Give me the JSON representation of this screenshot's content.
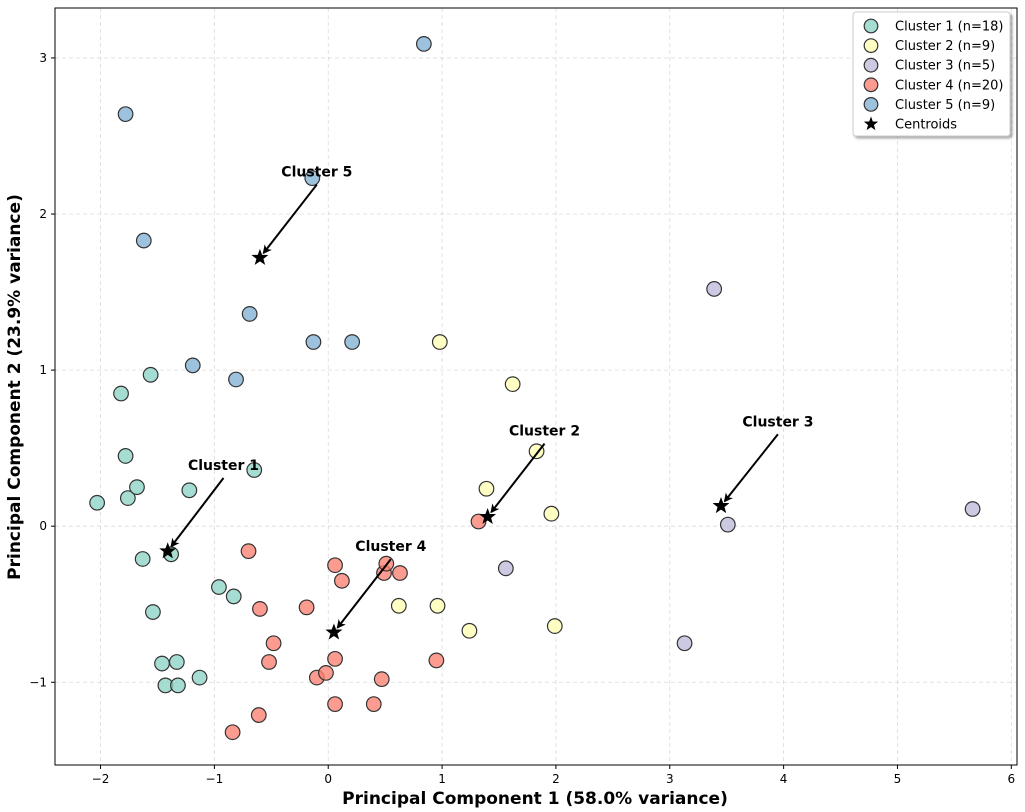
{
  "chart_data": {
    "type": "scatter",
    "xlabel": "Principal Component 1 (58.0% variance)",
    "ylabel": "Principal Component 2 (23.9% variance)",
    "xlim": [
      -2.4,
      6.05
    ],
    "ylim": [
      -1.53,
      3.32
    ],
    "xticks": [
      -2,
      -1,
      0,
      1,
      2,
      3,
      4,
      5,
      6
    ],
    "yticks": [
      -1,
      0,
      1,
      2,
      3
    ],
    "grid": true,
    "legend_position": "top-right",
    "series": [
      {
        "name": "Cluster 1 (n=18)",
        "color": "#8dd3c7",
        "points": [
          [
            -2.03,
            0.15
          ],
          [
            -1.82,
            0.85
          ],
          [
            -1.78,
            0.45
          ],
          [
            -1.76,
            0.18
          ],
          [
            -1.68,
            0.25
          ],
          [
            -1.56,
            0.97
          ],
          [
            -1.63,
            -0.21
          ],
          [
            -1.38,
            -0.18
          ],
          [
            -1.22,
            0.23
          ],
          [
            -0.65,
            0.36
          ],
          [
            -1.54,
            -0.55
          ],
          [
            -1.46,
            -0.88
          ],
          [
            -1.33,
            -0.87
          ],
          [
            -1.43,
            -1.02
          ],
          [
            -1.32,
            -1.02
          ],
          [
            -1.13,
            -0.97
          ],
          [
            -0.96,
            -0.39
          ],
          [
            -0.83,
            -0.45
          ]
        ]
      },
      {
        "name": "Cluster 2 (n=9)",
        "color": "#ffffb3",
        "points": [
          [
            0.98,
            1.18
          ],
          [
            1.62,
            0.91
          ],
          [
            1.83,
            0.48
          ],
          [
            1.39,
            0.24
          ],
          [
            1.96,
            0.08
          ],
          [
            0.62,
            -0.51
          ],
          [
            0.96,
            -0.51
          ],
          [
            1.24,
            -0.67
          ],
          [
            1.99,
            -0.64
          ]
        ]
      },
      {
        "name": "Cluster 3 (n=5)",
        "color": "#bebada",
        "points": [
          [
            3.39,
            1.52
          ],
          [
            3.51,
            0.01
          ],
          [
            5.66,
            0.11
          ],
          [
            1.56,
            -0.27
          ],
          [
            3.13,
            -0.75
          ]
        ]
      },
      {
        "name": "Cluster 4 (n=20)",
        "color": "#fb8072",
        "points": [
          [
            -0.7,
            -0.16
          ],
          [
            0.06,
            -0.25
          ],
          [
            0.12,
            -0.35
          ],
          [
            0.49,
            -0.3
          ],
          [
            0.51,
            -0.24
          ],
          [
            0.63,
            -0.3
          ],
          [
            1.32,
            0.03
          ],
          [
            -0.6,
            -0.53
          ],
          [
            -0.19,
            -0.52
          ],
          [
            -0.48,
            -0.75
          ],
          [
            -0.52,
            -0.87
          ],
          [
            -0.1,
            -0.97
          ],
          [
            -0.02,
            -0.94
          ],
          [
            0.06,
            -0.85
          ],
          [
            0.47,
            -0.98
          ],
          [
            0.95,
            -0.86
          ],
          [
            0.06,
            -1.14
          ],
          [
            0.4,
            -1.14
          ],
          [
            -0.61,
            -1.21
          ],
          [
            -0.84,
            -1.32
          ]
        ]
      },
      {
        "name": "Cluster 5 (n=9)",
        "color": "#80b1d3",
        "points": [
          [
            0.84,
            3.09
          ],
          [
            -1.78,
            2.64
          ],
          [
            -0.14,
            2.23
          ],
          [
            -1.62,
            1.83
          ],
          [
            -0.69,
            1.36
          ],
          [
            -0.13,
            1.18
          ],
          [
            0.21,
            1.18
          ],
          [
            -1.19,
            1.03
          ],
          [
            -0.81,
            0.94
          ]
        ]
      }
    ],
    "centroids": {
      "name": "Centroids",
      "points": [
        [
          -1.41,
          -0.16
        ],
        [
          1.4,
          0.06
        ],
        [
          3.45,
          0.13
        ],
        [
          0.05,
          -0.68
        ],
        [
          -0.6,
          1.72
        ]
      ]
    },
    "annotations": [
      {
        "text": "Cluster 1",
        "x": -0.92,
        "y": 0.36,
        "target": [
          -1.41,
          -0.16
        ]
      },
      {
        "text": "Cluster 2",
        "x": 1.9,
        "y": 0.58,
        "target": [
          1.4,
          0.06
        ]
      },
      {
        "text": "Cluster 3",
        "x": 3.95,
        "y": 0.64,
        "target": [
          3.45,
          0.13
        ]
      },
      {
        "text": "Cluster 4",
        "x": 0.55,
        "y": -0.16,
        "target": [
          0.05,
          -0.68
        ]
      },
      {
        "text": "Cluster 5",
        "x": -0.1,
        "y": 2.24,
        "target": [
          -0.6,
          1.72
        ]
      }
    ]
  }
}
